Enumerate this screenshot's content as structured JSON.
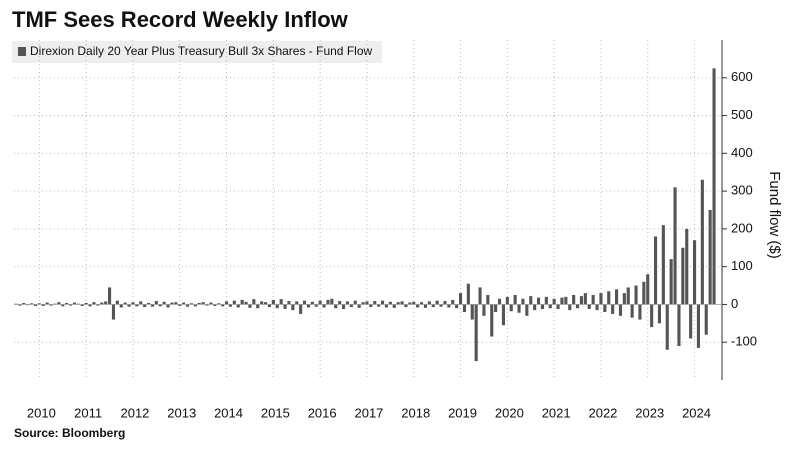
{
  "chart_data": {
    "type": "bar",
    "title": "TMF Sees Record Weekly Inflow",
    "legend_label": "Direxion Daily 20 Year Plus Treasury Bull 3x Shares - Fund Flow",
    "y_label": "Fund flow ($)",
    "source": "Source: Bloomberg",
    "color": "#555555",
    "grid": true,
    "ylim": [
      -200,
      700
    ],
    "yticks": [
      -100,
      0,
      100,
      200,
      300,
      400,
      500,
      600
    ],
    "categories": [
      null,
      null,
      null,
      null,
      null,
      null,
      "2010",
      null,
      null,
      null,
      null,
      null,
      null,
      null,
      null,
      null,
      null,
      null,
      "2011",
      null,
      null,
      null,
      null,
      null,
      null,
      null,
      null,
      null,
      null,
      null,
      "2012",
      null,
      null,
      null,
      null,
      null,
      null,
      null,
      null,
      null,
      null,
      null,
      "2013",
      null,
      null,
      null,
      null,
      null,
      null,
      null,
      null,
      null,
      null,
      null,
      "2014",
      null,
      null,
      null,
      null,
      null,
      null,
      null,
      null,
      null,
      null,
      null,
      "2015",
      null,
      null,
      null,
      null,
      null,
      null,
      null,
      null,
      null,
      null,
      null,
      "2016",
      null,
      null,
      null,
      null,
      null,
      null,
      null,
      null,
      null,
      null,
      null,
      "2017",
      null,
      null,
      null,
      null,
      null,
      null,
      null,
      null,
      null,
      null,
      null,
      "2018",
      null,
      null,
      null,
      null,
      null,
      null,
      null,
      null,
      null,
      null,
      null,
      "2019",
      null,
      null,
      null,
      null,
      null,
      null,
      null,
      null,
      null,
      null,
      null,
      "2020",
      null,
      null,
      null,
      null,
      null,
      null,
      null,
      null,
      null,
      null,
      null,
      "2021",
      null,
      null,
      null,
      null,
      null,
      null,
      null,
      null,
      null,
      null,
      null,
      "2022",
      null,
      null,
      null,
      null,
      null,
      null,
      null,
      null,
      null,
      null,
      null,
      "2023",
      null,
      null,
      null,
      null,
      null,
      null,
      null,
      null,
      null,
      null,
      null,
      "2024",
      null,
      null,
      null,
      null,
      null
    ],
    "values": [
      2,
      -3,
      4,
      -2,
      3,
      -4,
      3,
      -4,
      5,
      -3,
      2,
      6,
      -5,
      4,
      -3,
      5,
      2,
      -4,
      4,
      -5,
      6,
      -3,
      5,
      8,
      45,
      -40,
      10,
      -8,
      5,
      -6,
      6,
      -5,
      8,
      -7,
      4,
      -6,
      9,
      -5,
      7,
      -8,
      5,
      6,
      -4,
      5,
      -6,
      3,
      -5,
      4,
      6,
      -3,
      5,
      -4,
      3,
      -5,
      8,
      -6,
      10,
      -8,
      12,
      7,
      -9,
      14,
      -10,
      8,
      6,
      -7,
      12,
      -10,
      14,
      -12,
      9,
      -15,
      8,
      -25,
      10,
      -8,
      7,
      -6,
      10,
      -8,
      12,
      15,
      -10,
      9,
      -12,
      8,
      -7,
      10,
      -9,
      6,
      8,
      -7,
      9,
      -6,
      10,
      -8,
      7,
      -9,
      6,
      8,
      -7,
      5,
      7,
      -8,
      6,
      -9,
      8,
      -7,
      10,
      -6,
      9,
      -8,
      12,
      -10,
      30,
      -20,
      55,
      -40,
      -150,
      45,
      -30,
      25,
      -85,
      -20,
      15,
      -55,
      20,
      -18,
      25,
      -22,
      15,
      -30,
      22,
      -15,
      18,
      -12,
      20,
      -10,
      15,
      -12,
      18,
      20,
      -15,
      25,
      -10,
      22,
      30,
      -12,
      25,
      -15,
      30,
      -20,
      35,
      -25,
      40,
      -30,
      30,
      45,
      -35,
      50,
      -40,
      60,
      80,
      -60,
      180,
      -50,
      210,
      -120,
      120,
      310,
      -110,
      150,
      200,
      -90,
      170,
      -115,
      330,
      -80,
      250,
      625
    ]
  }
}
